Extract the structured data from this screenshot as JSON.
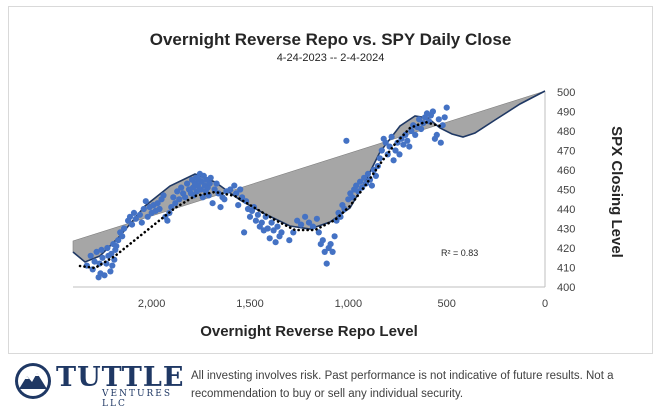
{
  "chart_data": {
    "type": "scatter",
    "title": "Overnight Reverse Repo vs. SPY Daily Close",
    "subtitle": "4-24-2023 -- 2-4-2024",
    "xlabel": "Overnight Reverse Repo Level",
    "ylabel": "SPX Closing Level",
    "x_reversed": true,
    "xlim": [
      0,
      2400
    ],
    "ylim": [
      400,
      500
    ],
    "x_ticks": [
      2000,
      1500,
      1000,
      500,
      0
    ],
    "x_tick_labels": [
      "2,000",
      "1,500",
      "1,000",
      "500",
      "0"
    ],
    "y_ticks": [
      400,
      410,
      420,
      430,
      440,
      450,
      460,
      470,
      480,
      490,
      500
    ],
    "annotation": "R² = 0.83",
    "grid": false,
    "colors": {
      "points": "#4472c4",
      "fit_line": "#000000",
      "shaded_area": "#a6a6a6",
      "outline": "#1f3864"
    },
    "scatter_points": [
      [
        2330,
        411
      ],
      [
        2310,
        416
      ],
      [
        2300,
        409
      ],
      [
        2290,
        413
      ],
      [
        2280,
        418
      ],
      [
        2270,
        405
      ],
      [
        2265,
        412
      ],
      [
        2260,
        407
      ],
      [
        2255,
        419
      ],
      [
        2250,
        415
      ],
      [
        2240,
        406
      ],
      [
        2230,
        412
      ],
      [
        2225,
        420
      ],
      [
        2220,
        416
      ],
      [
        2210,
        408
      ],
      [
        2205,
        417
      ],
      [
        2200,
        411
      ],
      [
        2195,
        422
      ],
      [
        2190,
        414
      ],
      [
        2185,
        419
      ],
      [
        2180,
        421
      ],
      [
        2170,
        424
      ],
      [
        2160,
        428
      ],
      [
        2150,
        426
      ],
      [
        2140,
        430
      ],
      [
        2120,
        434
      ],
      [
        2110,
        436
      ],
      [
        2100,
        432
      ],
      [
        2090,
        438
      ],
      [
        2080,
        435
      ],
      [
        2060,
        437
      ],
      [
        2050,
        433
      ],
      [
        2040,
        440
      ],
      [
        2030,
        444
      ],
      [
        2020,
        436
      ],
      [
        2010,
        441
      ],
      [
        2000,
        438
      ],
      [
        1990,
        442
      ],
      [
        1980,
        439
      ],
      [
        1970,
        443
      ],
      [
        1960,
        440
      ],
      [
        1950,
        445
      ],
      [
        1940,
        447
      ],
      [
        1930,
        436
      ],
      [
        1920,
        434
      ],
      [
        1910,
        438
      ],
      [
        1900,
        441
      ],
      [
        1890,
        446
      ],
      [
        1880,
        443
      ],
      [
        1870,
        449
      ],
      [
        1860,
        445
      ],
      [
        1850,
        451
      ],
      [
        1840,
        448
      ],
      [
        1830,
        446
      ],
      [
        1820,
        453
      ],
      [
        1810,
        450
      ],
      [
        1800,
        448
      ],
      [
        1795,
        455
      ],
      [
        1790,
        451
      ],
      [
        1785,
        447
      ],
      [
        1780,
        453
      ],
      [
        1775,
        456
      ],
      [
        1770,
        449
      ],
      [
        1765,
        452
      ],
      [
        1760,
        455
      ],
      [
        1755,
        458
      ],
      [
        1750,
        450
      ],
      [
        1745,
        454
      ],
      [
        1740,
        446
      ],
      [
        1735,
        457
      ],
      [
        1730,
        452
      ],
      [
        1725,
        449
      ],
      [
        1720,
        455
      ],
      [
        1715,
        451
      ],
      [
        1710,
        447
      ],
      [
        1705,
        453
      ],
      [
        1700,
        456
      ],
      [
        1690,
        443
      ],
      [
        1680,
        450
      ],
      [
        1670,
        453
      ],
      [
        1660,
        448
      ],
      [
        1650,
        441
      ],
      [
        1640,
        446
      ],
      [
        1630,
        445
      ],
      [
        1620,
        449
      ],
      [
        1600,
        450
      ],
      [
        1580,
        452
      ],
      [
        1570,
        448
      ],
      [
        1560,
        442
      ],
      [
        1550,
        450
      ],
      [
        1540,
        446
      ],
      [
        1530,
        428
      ],
      [
        1520,
        444
      ],
      [
        1510,
        440
      ],
      [
        1500,
        436
      ],
      [
        1490,
        439
      ],
      [
        1480,
        441
      ],
      [
        1470,
        434
      ],
      [
        1460,
        437
      ],
      [
        1450,
        431
      ],
      [
        1440,
        433
      ],
      [
        1430,
        429
      ],
      [
        1420,
        436
      ],
      [
        1410,
        430
      ],
      [
        1400,
        425
      ],
      [
        1390,
        433
      ],
      [
        1380,
        429
      ],
      [
        1370,
        423
      ],
      [
        1360,
        431
      ],
      [
        1350,
        426
      ],
      [
        1340,
        428
      ],
      [
        1300,
        424
      ],
      [
        1280,
        428
      ],
      [
        1260,
        434
      ],
      [
        1240,
        432
      ],
      [
        1220,
        436
      ],
      [
        1200,
        433
      ],
      [
        1180,
        431
      ],
      [
        1160,
        435
      ],
      [
        1150,
        428
      ],
      [
        1140,
        422
      ],
      [
        1130,
        424
      ],
      [
        1120,
        418
      ],
      [
        1110,
        412
      ],
      [
        1100,
        420
      ],
      [
        1090,
        422
      ],
      [
        1080,
        418
      ],
      [
        1070,
        426
      ],
      [
        1060,
        434
      ],
      [
        1050,
        438
      ],
      [
        1040,
        436
      ],
      [
        1030,
        442
      ],
      [
        1020,
        440
      ],
      [
        1010,
        475
      ],
      [
        1000,
        445
      ],
      [
        990,
        448
      ],
      [
        980,
        446
      ],
      [
        970,
        450
      ],
      [
        960,
        452
      ],
      [
        950,
        449
      ],
      [
        940,
        454
      ],
      [
        930,
        451
      ],
      [
        920,
        456
      ],
      [
        910,
        453
      ],
      [
        900,
        458
      ],
      [
        890,
        455
      ],
      [
        880,
        452
      ],
      [
        870,
        460
      ],
      [
        860,
        457
      ],
      [
        850,
        462
      ],
      [
        840,
        466
      ],
      [
        830,
        470
      ],
      [
        820,
        476
      ],
      [
        810,
        474
      ],
      [
        800,
        468
      ],
      [
        790,
        472
      ],
      [
        780,
        477
      ],
      [
        770,
        465
      ],
      [
        760,
        470
      ],
      [
        750,
        474
      ],
      [
        740,
        468
      ],
      [
        730,
        476
      ],
      [
        720,
        473
      ],
      [
        710,
        478
      ],
      [
        700,
        475
      ],
      [
        690,
        472
      ],
      [
        680,
        480
      ],
      [
        670,
        483
      ],
      [
        660,
        478
      ],
      [
        650,
        482
      ],
      [
        640,
        486
      ],
      [
        630,
        481
      ],
      [
        620,
        484
      ],
      [
        610,
        487
      ],
      [
        600,
        489
      ],
      [
        590,
        485
      ],
      [
        580,
        488
      ],
      [
        570,
        490
      ],
      [
        560,
        476
      ],
      [
        550,
        478
      ],
      [
        540,
        486
      ],
      [
        530,
        474
      ],
      [
        520,
        483
      ],
      [
        510,
        487
      ],
      [
        500,
        492
      ]
    ]
  }
}
